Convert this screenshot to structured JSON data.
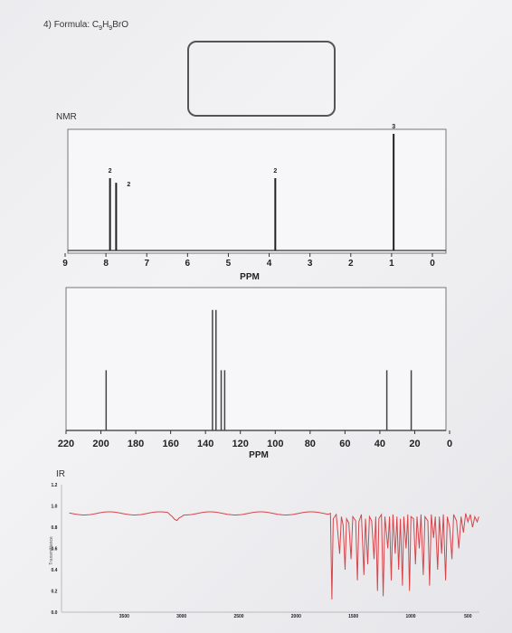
{
  "worksheet": {
    "question_number": "4)",
    "formula_label": "Formula:",
    "formula": {
      "c": "C",
      "c_sub": "9",
      "h": "H",
      "h_sub": "9",
      "rest": "BrO"
    }
  },
  "answer_box": {
    "value": ""
  },
  "nmr": {
    "label": "NMR",
    "xlabel": "PPM",
    "ticks": [
      "9",
      "8",
      "7",
      "6",
      "5",
      "4",
      "3",
      "2",
      "1",
      "0"
    ],
    "peaks": [
      {
        "ppm": 7.9,
        "integration": "2"
      },
      {
        "ppm": 7.75,
        "integration": "2"
      },
      {
        "ppm": 3.85,
        "integration": "2"
      },
      {
        "ppm": 0.95,
        "integration": "3"
      }
    ]
  },
  "c13": {
    "xlabel": "PPM",
    "ticks": [
      "220",
      "200",
      "180",
      "160",
      "140",
      "120",
      "100",
      "80",
      "60",
      "40",
      "20",
      "0"
    ]
  },
  "ir": {
    "label": "IR",
    "ylabel": "Transmittance",
    "yticks": [
      "1.2",
      "1.0",
      "0.8",
      "0.6",
      "0.4",
      "0.2",
      "0.0"
    ],
    "xticks": [
      "3500",
      "3000",
      "2500",
      "2000",
      "1500",
      "1000",
      "500"
    ]
  },
  "chart_data": [
    {
      "type": "line",
      "title": "NMR",
      "xlabel": "PPM",
      "xlim": [
        9,
        0
      ],
      "x": [
        7.9,
        7.75,
        3.85,
        0.95
      ],
      "values": [
        0.62,
        0.58,
        0.62,
        1.0
      ],
      "annotations": [
        "2",
        "2",
        "2",
        "3"
      ]
    },
    {
      "type": "line",
      "xlabel": "PPM",
      "xlim": [
        220,
        0
      ],
      "x": [
        197,
        136,
        134,
        131,
        129,
        36,
        22
      ],
      "values": [
        0.45,
        0.9,
        0.9,
        0.45,
        0.45,
        0.45,
        0.45
      ]
    },
    {
      "type": "line",
      "title": "IR",
      "ylabel": "Transmittance",
      "xlim": [
        4000,
        400
      ],
      "ylim": [
        0,
        1.2
      ],
      "x": [
        4000,
        3800,
        3600,
        3400,
        3100,
        3000,
        2900,
        2500,
        2000,
        1800,
        1700,
        1690,
        1600,
        1450,
        1250,
        1000,
        800,
        600,
        400
      ],
      "values": [
        0.96,
        0.95,
        0.94,
        0.93,
        0.93,
        0.89,
        0.92,
        0.93,
        0.92,
        0.92,
        0.9,
        0.12,
        0.5,
        0.2,
        0.1,
        0.2,
        0.3,
        0.8,
        0.9
      ]
    }
  ]
}
